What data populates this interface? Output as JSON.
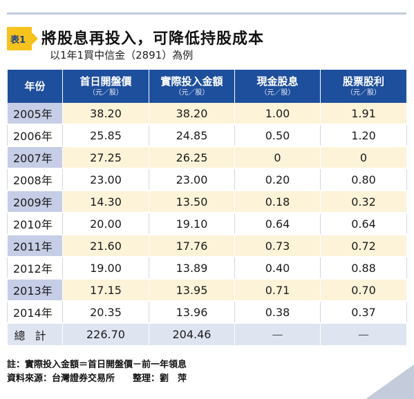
{
  "header": {
    "tag": "表1",
    "title": "將股息再投入，可降低持股成本",
    "subtitle": "以1年1買中信金（2891）為例"
  },
  "table": {
    "columns": [
      {
        "label": "年份",
        "unit": ""
      },
      {
        "label": "首日開盤價",
        "unit": "（元／股）"
      },
      {
        "label": "實際投入金額",
        "unit": "（元／股）"
      },
      {
        "label": "現金股息",
        "unit": "（元／股）"
      },
      {
        "label": "股票股利",
        "unit": "（元／股）"
      }
    ],
    "rows": [
      {
        "year": "2005年",
        "open": "38.20",
        "invest": "38.20",
        "cash": "1.00",
        "stock": "1.91"
      },
      {
        "year": "2006年",
        "open": "25.85",
        "invest": "24.85",
        "cash": "0.50",
        "stock": "1.20"
      },
      {
        "year": "2007年",
        "open": "27.25",
        "invest": "26.25",
        "cash": "0",
        "stock": "0"
      },
      {
        "year": "2008年",
        "open": "23.00",
        "invest": "23.00",
        "cash": "0.20",
        "stock": "0.80"
      },
      {
        "year": "2009年",
        "open": "14.30",
        "invest": "13.50",
        "cash": "0.18",
        "stock": "0.32"
      },
      {
        "year": "2010年",
        "open": "20.00",
        "invest": "19.10",
        "cash": "0.64",
        "stock": "0.64"
      },
      {
        "year": "2011年",
        "open": "21.60",
        "invest": "17.76",
        "cash": "0.73",
        "stock": "0.72"
      },
      {
        "year": "2012年",
        "open": "19.00",
        "invest": "13.89",
        "cash": "0.40",
        "stock": "0.88"
      },
      {
        "year": "2013年",
        "open": "17.15",
        "invest": "13.95",
        "cash": "0.71",
        "stock": "0.70"
      },
      {
        "year": "2014年",
        "open": "20.35",
        "invest": "13.96",
        "cash": "0.38",
        "stock": "0.37"
      }
    ],
    "total": {
      "label": "總計",
      "open": "226.70",
      "invest": "204.46",
      "cash": "—",
      "stock": "—"
    }
  },
  "notes": {
    "note": "註：實際投入金額＝首日開盤價－前一年領息",
    "source": "資料來源：台灣證券交易所　　整理：劉　萍"
  },
  "colors": {
    "header_blue": "#1e4f9c",
    "accent_yellow": "#f6c21c",
    "row_cream": "#fdf3d9",
    "year_lavender": "#c6cde6",
    "total_row": "#dfe4f1"
  }
}
